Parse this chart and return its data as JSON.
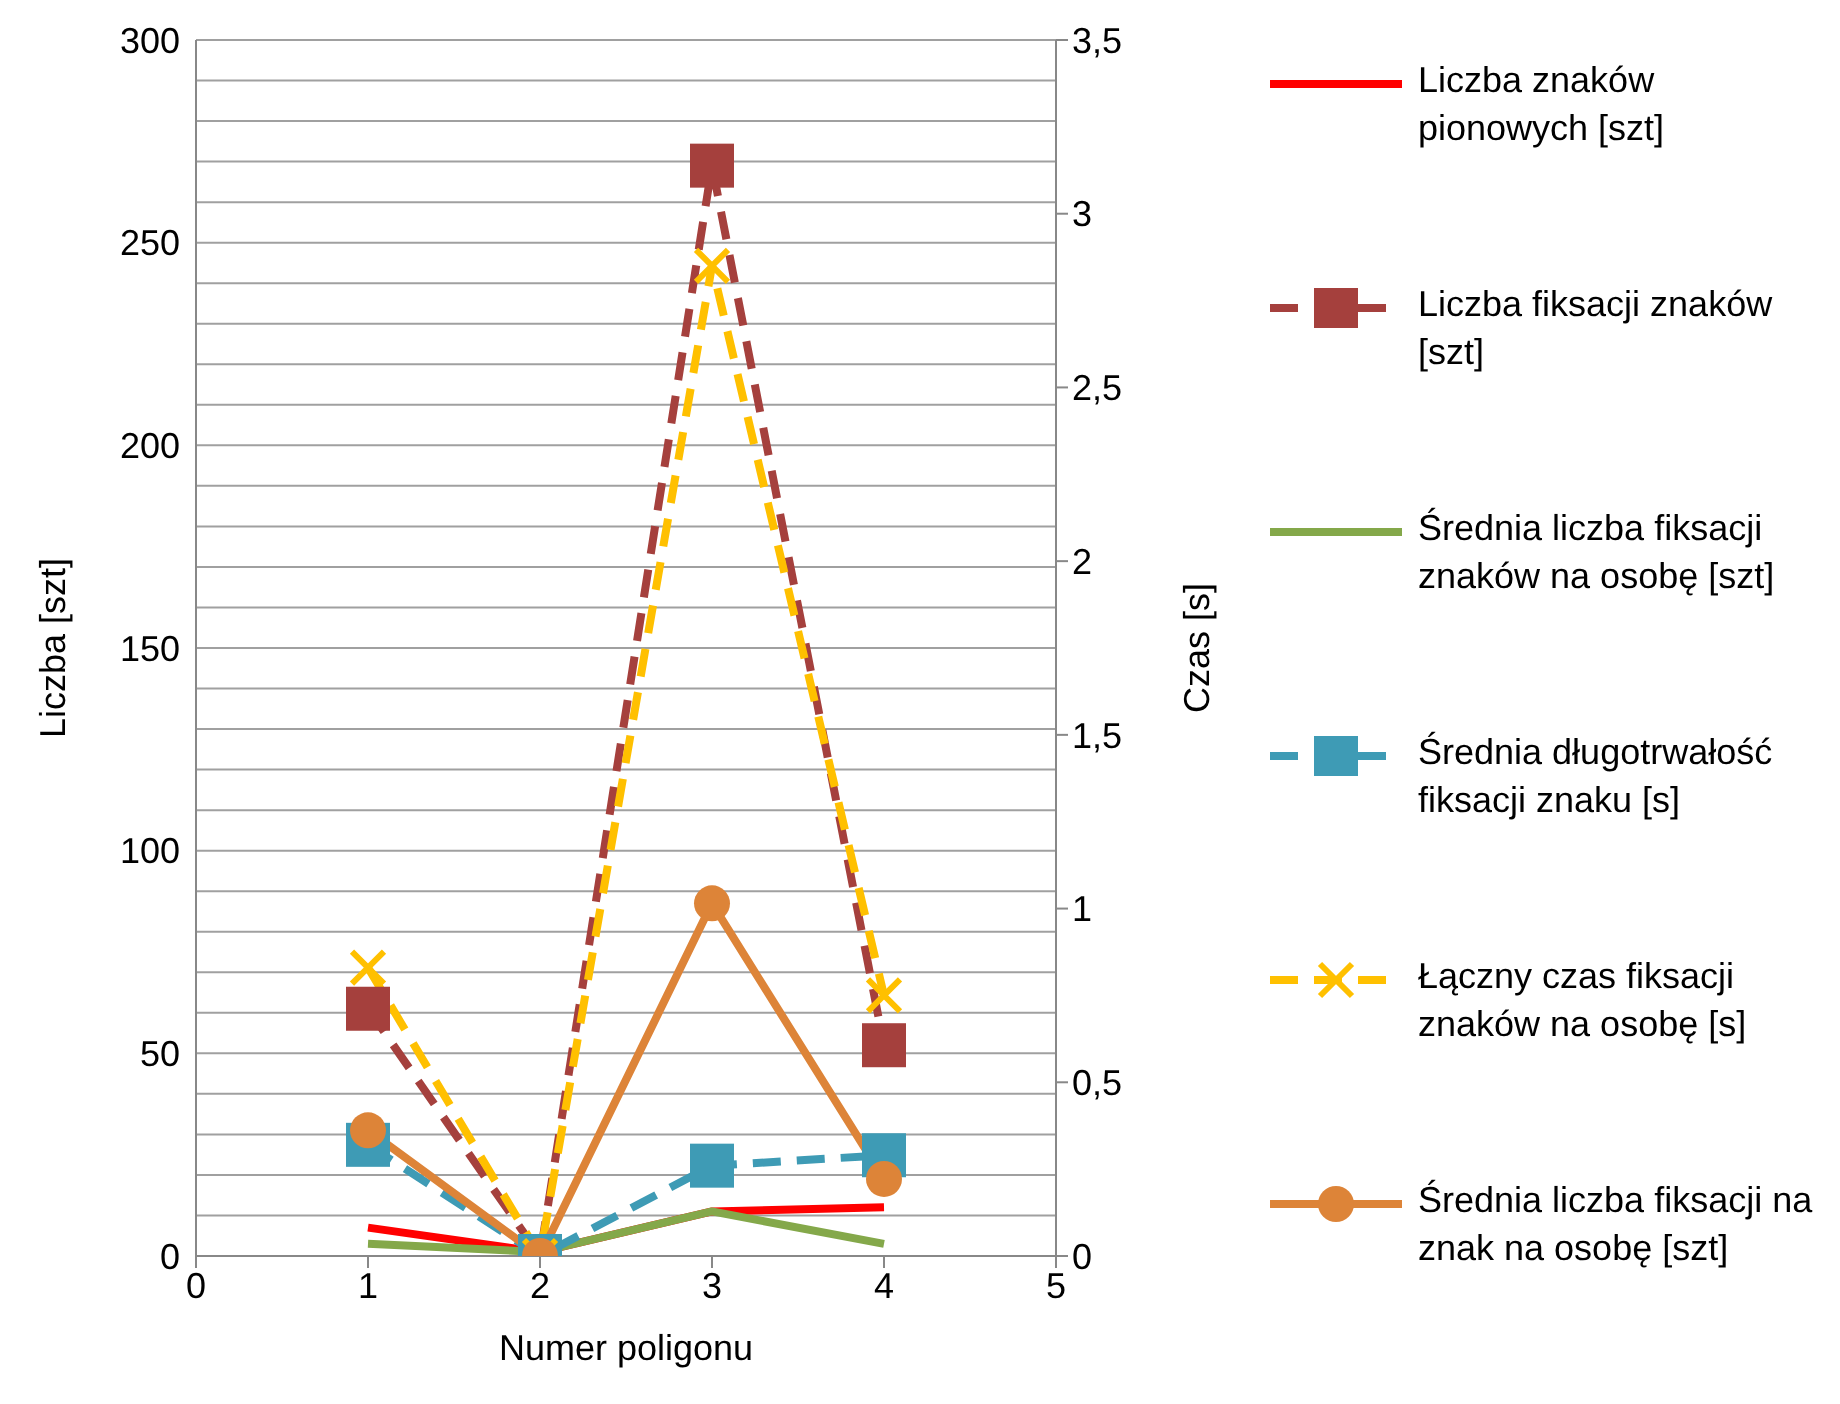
{
  "chart_data": {
    "type": "line",
    "xlabel": "Numer poligonu",
    "ylabel": "Liczba [szt]",
    "y2label": "Czas [s]",
    "x": [
      1,
      2,
      3,
      4
    ],
    "xlim": [
      0,
      5
    ],
    "xticks": [
      0,
      1,
      2,
      3,
      4,
      5
    ],
    "ylim": [
      0,
      300
    ],
    "yticks": [
      0,
      {
        "value": 10,
        "label": null
      },
      {
        "value": 20,
        "label": null
      },
      {
        "value": 30,
        "label": null
      },
      {
        "value": 40,
        "label": null
      },
      50,
      {
        "value": 60,
        "label": null
      },
      {
        "value": 70,
        "label": null
      },
      {
        "value": 80,
        "label": null
      },
      {
        "value": 90,
        "label": null
      },
      100,
      {
        "value": 110,
        "label": null
      },
      {
        "value": 120,
        "label": null
      },
      {
        "value": 130,
        "label": null
      },
      {
        "value": 140,
        "label": null
      },
      150,
      {
        "value": 160,
        "label": null
      },
      {
        "value": 170,
        "label": null
      },
      {
        "value": 180,
        "label": null
      },
      {
        "value": 190,
        "label": null
      },
      200,
      {
        "value": 210,
        "label": null
      },
      {
        "value": 220,
        "label": null
      },
      {
        "value": 230,
        "label": null
      },
      {
        "value": 240,
        "label": null
      },
      250,
      {
        "value": 260,
        "label": null
      },
      {
        "value": 270,
        "label": null
      },
      {
        "value": 280,
        "label": null
      },
      {
        "value": 290,
        "label": null
      },
      300
    ],
    "y2lim": [
      0,
      3.5
    ],
    "y2ticks": [
      0,
      {
        "value": 0.5,
        "label": "0,5"
      },
      1,
      {
        "value": 1.5,
        "label": "1,5"
      },
      2,
      {
        "value": 2.5,
        "label": "2,5"
      },
      3,
      {
        "value": 3.5,
        "label": "3,5"
      }
    ],
    "grid": "y",
    "legend": "right",
    "series": [
      {
        "name": "Liczba znaków pionowych [szt]",
        "color": "#ff0000",
        "values": [
          7,
          1,
          11,
          12
        ],
        "marker": "none",
        "line_style": "solid"
      },
      {
        "name": "Liczba fiksacji znaków [szt]",
        "color": "#a5403d",
        "values": [
          61,
          0,
          269,
          52
        ],
        "marker": "square",
        "line_style": "dashed"
      },
      {
        "name": "Średnia liczba fiksacji znaków na osobę [szt]",
        "color": "#84a84a",
        "values": [
          3,
          1,
          11,
          3
        ],
        "marker": "none",
        "line_style": "solid"
      },
      {
        "name": "Średnia długotrwałość fiksacji znaku [s]",
        "color": "#3e9bb5",
        "values": [
          0.32,
          0,
          0.26,
          0.29
        ],
        "marker": "square",
        "line_style": "dashed",
        "axis": "y2"
      },
      {
        "name": "Łączny czas fiksacji znaków na osobę [s]",
        "color": "#ffc000",
        "values": [
          0.83,
          0,
          2.85,
          0.75
        ],
        "marker": "cross",
        "line_style": "dashed",
        "axis": "y2"
      },
      {
        "name": "Średnia liczba fiksacji na znak na osobę [szt]",
        "color": "#dd8438",
        "values": [
          31,
          0,
          87,
          19
        ],
        "marker": "circle",
        "line_style": "solid"
      }
    ]
  }
}
